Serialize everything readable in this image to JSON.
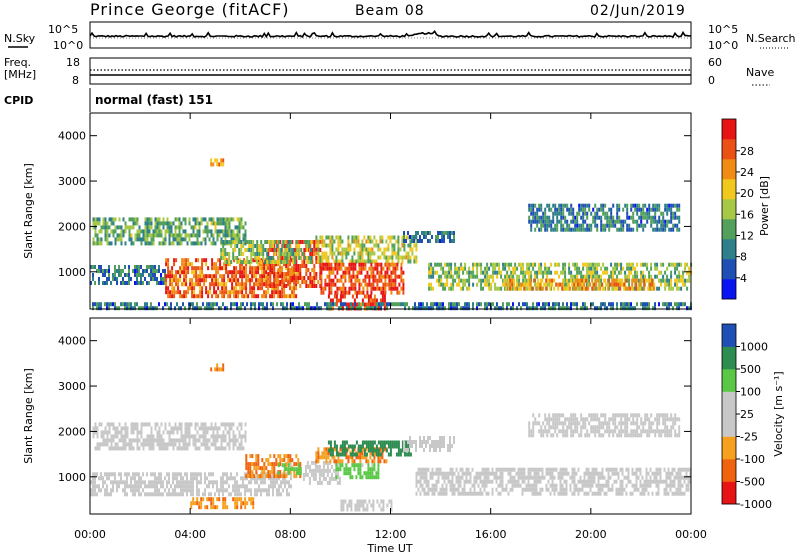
{
  "header": {
    "station": "Prince George (fitACF)",
    "beam": "Beam 08",
    "date": "02/Jun/2019"
  },
  "noise_panel": {
    "left_label": "N.Sky",
    "left_ticks": [
      "10^5",
      "10^0"
    ],
    "right_label": "N.Search",
    "right_ticks": [
      "10^5",
      "10^0"
    ]
  },
  "freq_panel": {
    "left_label_1": "Freq.",
    "left_label_2": "[MHz]",
    "left_ticks": [
      "18",
      "8"
    ],
    "right_label": "Nave",
    "right_ticks": [
      "60",
      "0"
    ],
    "cpid_label": "CPID",
    "cpid_text": "normal (fast) 151"
  },
  "colors": {
    "power_scale": [
      "#0a14f0",
      "#1f4fb4",
      "#2f7f8a",
      "#52a05c",
      "#a6c846",
      "#f0c81e",
      "#f08c14",
      "#eb5014",
      "#e61414"
    ],
    "velocity_scale": [
      "#e61414",
      "#f0640f",
      "#f5a01e",
      "#c8c8c8",
      "#c8c8c8",
      "#5ac846",
      "#2d8c50",
      "#1f4fb4"
    ]
  },
  "x_axis": {
    "label": "Time UT",
    "ticks": [
      "00:00",
      "04:00",
      "08:00",
      "12:00",
      "16:00",
      "20:00",
      "00:00"
    ]
  },
  "chart_data": [
    {
      "type": "heatmap",
      "title": "",
      "xlabel": "Time UT",
      "ylabel": "Slant Range [km]",
      "xlim": [
        0,
        24
      ],
      "ylim": [
        180,
        4500
      ],
      "yticks": [
        "1000",
        "2000",
        "3000",
        "4000"
      ],
      "colorbar": {
        "label": "Power [dB]",
        "ticks": [
          "4",
          "8",
          "12",
          "16",
          "20",
          "24",
          "28"
        ],
        "range": [
          0,
          30
        ]
      },
      "regions": [
        {
          "t0": 0.1,
          "t1": 6.2,
          "r0": 1600,
          "r1": 2200,
          "v": 12
        },
        {
          "t0": 0.0,
          "t1": 3.0,
          "r0": 750,
          "r1": 1150,
          "v": 8
        },
        {
          "t0": 3.0,
          "t1": 8.2,
          "r0": 500,
          "r1": 1300,
          "v": 24
        },
        {
          "t0": 7.0,
          "t1": 9.2,
          "r0": 700,
          "r1": 1700,
          "v": 26
        },
        {
          "t0": 5.2,
          "t1": 8.8,
          "r0": 1200,
          "r1": 1700,
          "v": 14
        },
        {
          "t0": 9.0,
          "t1": 13.0,
          "r0": 1200,
          "r1": 1800,
          "v": 16
        },
        {
          "t0": 9.2,
          "t1": 12.5,
          "r0": 500,
          "r1": 1200,
          "v": 26
        },
        {
          "t0": 9.5,
          "t1": 11.8,
          "r0": 200,
          "r1": 500,
          "v": 27
        },
        {
          "t0": 13.5,
          "t1": 24.0,
          "r0": 600,
          "r1": 1200,
          "v": 14
        },
        {
          "t0": 16.5,
          "t1": 22.5,
          "r0": 650,
          "r1": 850,
          "v": 21
        },
        {
          "t0": 12.5,
          "t1": 14.5,
          "r0": 1650,
          "r1": 1900,
          "v": 8
        },
        {
          "t0": 17.5,
          "t1": 23.5,
          "r0": 1900,
          "r1": 2500,
          "v": 8
        },
        {
          "t0": 4.8,
          "t1": 5.3,
          "r0": 3350,
          "r1": 3500,
          "v": 20
        },
        {
          "t0": 0.0,
          "t1": 24.0,
          "r0": 180,
          "r1": 330,
          "v": 8
        }
      ]
    },
    {
      "type": "heatmap",
      "title": "",
      "xlabel": "Time UT",
      "ylabel": "Slant Range [km]",
      "xlim": [
        0,
        24
      ],
      "ylim": [
        180,
        4500
      ],
      "yticks": [
        "1000",
        "2000",
        "3000",
        "4000"
      ],
      "colorbar": {
        "label": "Velocity [m s⁻¹]",
        "ticks": [
          "1000",
          "500",
          "100",
          "25",
          "-25",
          "-100",
          "-500",
          "-1000"
        ]
      },
      "regions": [
        {
          "t0": 0.1,
          "t1": 6.2,
          "r0": 1650,
          "r1": 2200,
          "v": 0
        },
        {
          "t0": 0.0,
          "t1": 8.0,
          "r0": 600,
          "r1": 1100,
          "v": 0
        },
        {
          "t0": 6.2,
          "t1": 8.4,
          "r0": 1050,
          "r1": 1500,
          "v": -300
        },
        {
          "t0": 7.5,
          "t1": 8.4,
          "r0": 1100,
          "r1": 1300,
          "v": 80
        },
        {
          "t0": 8.5,
          "t1": 10.0,
          "r0": 900,
          "r1": 1350,
          "v": 0
        },
        {
          "t0": 9.0,
          "t1": 11.8,
          "r0": 1300,
          "r1": 1650,
          "v": -300
        },
        {
          "t0": 9.5,
          "t1": 12.8,
          "r0": 1450,
          "r1": 1800,
          "v": 600
        },
        {
          "t0": 9.8,
          "t1": 11.5,
          "r0": 1000,
          "r1": 1300,
          "v": 80
        },
        {
          "t0": 4.0,
          "t1": 6.5,
          "r0": 350,
          "r1": 550,
          "v": -300
        },
        {
          "t0": 10.0,
          "t1": 12.0,
          "r0": 300,
          "r1": 500,
          "v": 0
        },
        {
          "t0": 13.0,
          "t1": 24.0,
          "r0": 600,
          "r1": 1200,
          "v": 0
        },
        {
          "t0": 12.5,
          "t1": 14.5,
          "r0": 1600,
          "r1": 1900,
          "v": 0
        },
        {
          "t0": 17.5,
          "t1": 23.5,
          "r0": 1900,
          "r1": 2400,
          "v": 0
        },
        {
          "t0": 4.8,
          "t1": 5.3,
          "r0": 3350,
          "r1": 3500,
          "v": -300
        }
      ]
    }
  ]
}
